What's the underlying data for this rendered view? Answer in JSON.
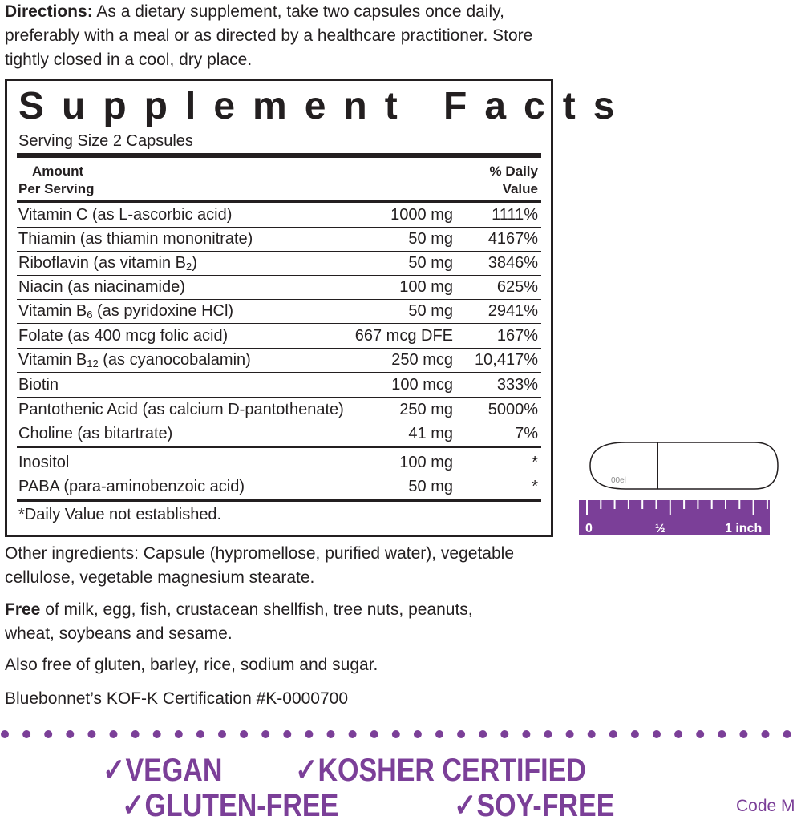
{
  "directions": {
    "label": "Directions:",
    "text": " As a dietary supplement, take two capsules once daily, preferably with a meal or as directed by a healthcare practitioner. Store tightly closed in a cool, dry place."
  },
  "facts": {
    "title": "Supplement Facts",
    "serving": "Serving Size 2 Capsules",
    "hdr_amount_1": "Amount",
    "hdr_amount_2": "Per Serving",
    "hdr_dv_1": "% Daily",
    "hdr_dv_2": "Value",
    "rows": [
      {
        "pre": "Vitamin C (as L-ascorbic acid)",
        "sub": "",
        "post": "",
        "amount": "1000 mg",
        "dv": "1111%"
      },
      {
        "pre": "Thiamin (as thiamin mononitrate)",
        "sub": "",
        "post": "",
        "amount": "50 mg",
        "dv": "4167%"
      },
      {
        "pre": "Riboflavin (as vitamin B",
        "sub": "2",
        "post": ")",
        "amount": "50 mg",
        "dv": "3846%"
      },
      {
        "pre": "Niacin (as niacinamide)",
        "sub": "",
        "post": "",
        "amount": "100 mg",
        "dv": "625%"
      },
      {
        "pre": "Vitamin B",
        "sub": "6",
        "post": " (as pyridoxine HCl)",
        "amount": "50 mg",
        "dv": "2941%"
      },
      {
        "pre": "Folate (as 400 mcg folic acid)",
        "sub": "",
        "post": "",
        "amount": "667 mcg DFE",
        "dv": "167%"
      },
      {
        "pre": "Vitamin B",
        "sub": "12",
        "post": " (as cyanocobalamin)",
        "amount": "250 mcg",
        "dv": "10,417%"
      },
      {
        "pre": "Biotin",
        "sub": "",
        "post": "",
        "amount": "100 mcg",
        "dv": "333%"
      },
      {
        "pre": "Pantothenic Acid (as calcium D-pantothenate)",
        "sub": "",
        "post": "",
        "amount": "250 mg",
        "dv": "5000%"
      },
      {
        "pre": "Choline (as bitartrate)",
        "sub": "",
        "post": "",
        "amount": "41 mg",
        "dv": "7%"
      },
      {
        "pre": "Inositol",
        "sub": "",
        "post": "",
        "amount": "100 mg",
        "dv": "*"
      },
      {
        "pre": "PABA (para-aminobenzoic acid)",
        "sub": "",
        "post": "",
        "amount": "50 mg",
        "dv": "*"
      }
    ],
    "footnote": "*Daily Value not established."
  },
  "other": "Other ingredients: Capsule (hypromellose, purified water), vegetable cellulose, vegetable magnesium stearate.",
  "free": {
    "label": "Free",
    "text": " of milk, egg, fish, crustacean shellfish, tree nuts, peanuts, wheat, soybeans and sesame."
  },
  "also": "Also free of gluten, barley, rice, sodium and sugar.",
  "cert": "Bluebonnet’s KOF-K Certification #K-0000700",
  "capsule": {
    "size": "00el"
  },
  "ruler": {
    "l0": "0",
    "lhalf": "½",
    "l1": "1 inch"
  },
  "claims": [
    "✓VEGAN",
    "✓KOSHER CERTIFIED",
    "✓GLUTEN-FREE",
    "✓SOY-FREE"
  ],
  "code": "Code M",
  "colors": {
    "purple": "#7b3f98",
    "text": "#231f20"
  }
}
